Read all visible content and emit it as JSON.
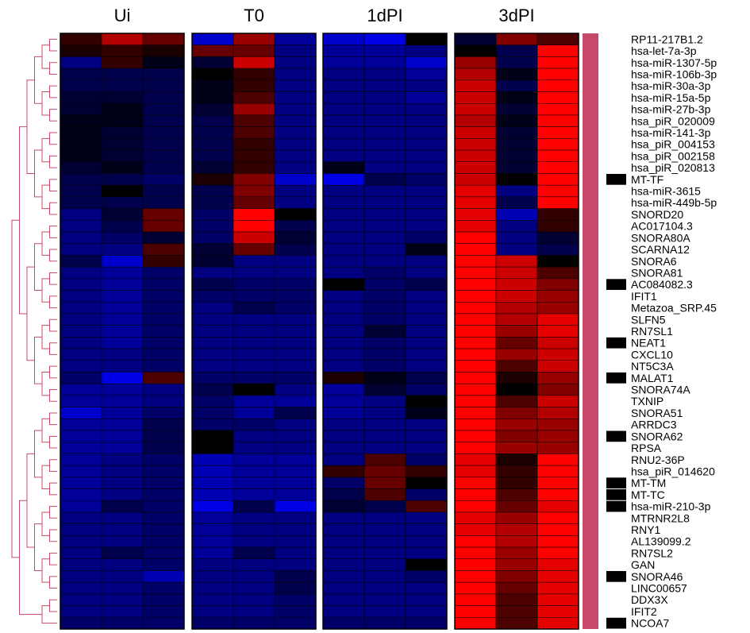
{
  "chart_data": {
    "type": "heatmap",
    "title": "",
    "xlabel": "",
    "ylabel": "",
    "groups": [
      "Ui",
      "T0",
      "1dPI",
      "3dPI"
    ],
    "replicates_per_group": 3,
    "row_labels": [
      "RP11-217B1.2",
      "hsa-let-7a-3p",
      "hsa-miR-1307-5p",
      "hsa-miR-106b-3p",
      "hsa-miR-30a-3p",
      "hsa-miR-15a-5p",
      "hsa-miR-27b-3p",
      "hsa_piR_020009",
      "hsa-miR-141-3p",
      "hsa_piR_004153",
      "hsa_piR_002158",
      "hsa_piR_020813",
      "MT-TF",
      "hsa-miR-3615",
      "hsa-miR-449b-5p",
      "SNORD20",
      "AC017104.3",
      "SNORA80A",
      "SCARNA12",
      "SNORA6",
      "SNORA81",
      "AC084082.3",
      "IFIT1",
      "Metazoa_SRP.45",
      "SLFN5",
      "RN7SL1",
      "NEAT1",
      "CXCL10",
      "NT5C3A",
      "MALAT1",
      "SNORA74A",
      "TXNIP",
      "SNORA51",
      "ARRDC3",
      "SNORA62",
      "RPSA",
      "RNU2-36P",
      "hsa_piR_014620",
      "MT-TM",
      "MT-TC",
      "hsa-miR-210-3p",
      "MTRNR2L8",
      "RNY1",
      "AL139099.2",
      "RN7SL2",
      "GAN",
      "SNORA46",
      "LINC00657",
      "DDX3X",
      "IFIT2",
      "NCOA7"
    ],
    "annotation_rows": [
      "MT-TF",
      "AC084082.3",
      "NEAT1",
      "MALAT1",
      "SNORA62",
      "MT-TM",
      "MT-TC",
      "hsa-miR-210-3p",
      "SNORA46",
      "NCOA7"
    ],
    "annotation_bar_color": "#c84a6a",
    "dendrogram_color": "#c84a6a",
    "color_scale": {
      "low": "#0000ff",
      "mid": "#000000",
      "high": "#ff0000",
      "range": [
        -1,
        1
      ]
    },
    "values": [
      [
        0.2,
        0.7,
        0.4,
        -0.8,
        0.6,
        -0.6,
        -0.8,
        -0.9,
        0.0,
        -0.2,
        0.5,
        0.3
      ],
      [
        0.1,
        0.2,
        0.1,
        0.4,
        0.4,
        -0.5,
        -0.6,
        -0.6,
        -0.5,
        0.0,
        -0.3,
        1
      ],
      [
        -0.5,
        0.2,
        -0.1,
        -0.2,
        0.8,
        -0.5,
        -0.6,
        -0.6,
        -0.8,
        0.6,
        -0.3,
        1
      ],
      [
        -0.3,
        -0.3,
        -0.3,
        0.0,
        0.2,
        -0.5,
        -0.5,
        -0.5,
        -0.6,
        0.7,
        -0.1,
        1
      ],
      [
        -0.3,
        -0.3,
        -0.3,
        -0.1,
        0.2,
        -0.5,
        -0.5,
        -0.5,
        -0.5,
        0.8,
        -0.3,
        1
      ],
      [
        -0.2,
        -0.2,
        -0.3,
        -0.1,
        0.3,
        -0.5,
        -0.5,
        -0.5,
        -0.6,
        0.8,
        -0.1,
        1
      ],
      [
        -0.2,
        -0.1,
        -0.3,
        -0.2,
        0.6,
        -0.5,
        -0.5,
        -0.5,
        -0.5,
        0.8,
        -0.2,
        1
      ],
      [
        -0.1,
        -0.1,
        -0.3,
        -0.3,
        0.3,
        -0.5,
        -0.5,
        -0.5,
        -0.5,
        0.7,
        -0.1,
        1
      ],
      [
        -0.1,
        -0.2,
        -0.3,
        -0.3,
        0.3,
        -0.5,
        -0.5,
        -0.5,
        -0.5,
        0.8,
        -0.2,
        1
      ],
      [
        -0.1,
        -0.2,
        -0.3,
        -0.3,
        0.2,
        -0.5,
        -0.5,
        -0.5,
        -0.5,
        0.8,
        -0.2,
        1
      ],
      [
        -0.1,
        -0.2,
        -0.3,
        -0.3,
        0.2,
        -0.5,
        -0.5,
        -0.5,
        -0.5,
        0.8,
        -0.2,
        1
      ],
      [
        -0.2,
        -0.1,
        -0.3,
        -0.2,
        0.2,
        -0.5,
        -0.1,
        -0.5,
        -0.5,
        0.8,
        -0.2,
        1
      ],
      [
        -0.3,
        -0.3,
        -0.4,
        0.1,
        0.5,
        -0.8,
        -0.9,
        -0.3,
        -0.4,
        0.8,
        0.0,
        1
      ],
      [
        -0.3,
        0.0,
        -0.3,
        -0.3,
        0.5,
        -0.5,
        -0.5,
        -0.5,
        -0.5,
        0.9,
        -0.5,
        1
      ],
      [
        -0.3,
        -0.3,
        -0.3,
        -0.3,
        0.4,
        -0.5,
        -0.5,
        -0.5,
        -0.5,
        0.9,
        -0.3,
        1
      ],
      [
        -0.5,
        -0.2,
        0.4,
        -0.4,
        1,
        0.0,
        -0.5,
        -0.5,
        -0.5,
        0.9,
        -0.7,
        0.2
      ],
      [
        -0.5,
        -0.3,
        0.4,
        -0.4,
        1,
        -0.3,
        -0.5,
        -0.5,
        -0.5,
        0.9,
        -0.5,
        0.2
      ],
      [
        -0.5,
        -0.4,
        -0.2,
        -0.4,
        0.8,
        -0.2,
        -0.5,
        -0.5,
        -0.4,
        1,
        -0.5,
        -0.2
      ],
      [
        -0.5,
        -0.5,
        0.3,
        -0.2,
        0.4,
        -0.3,
        -0.5,
        -0.5,
        -0.1,
        1,
        -0.5,
        -0.3
      ],
      [
        -0.3,
        -0.8,
        0.2,
        -0.2,
        -0.5,
        -0.5,
        -0.5,
        -0.5,
        -0.5,
        1,
        0.8,
        0.0
      ],
      [
        -0.5,
        -0.6,
        -0.4,
        -0.5,
        -0.5,
        -0.5,
        -0.5,
        -0.4,
        -0.5,
        1,
        0.8,
        0.3
      ],
      [
        -0.5,
        -0.6,
        -0.4,
        -0.3,
        -0.4,
        -0.4,
        0.0,
        -0.4,
        -0.3,
        1,
        0.8,
        0.5
      ],
      [
        -0.5,
        -0.6,
        -0.4,
        -0.4,
        -0.4,
        -0.4,
        -0.5,
        -0.4,
        -0.5,
        1,
        0.8,
        0.6
      ],
      [
        -0.5,
        -0.6,
        -0.4,
        -0.5,
        -0.3,
        -0.4,
        -0.5,
        -0.4,
        -0.5,
        1,
        0.7,
        0.6
      ],
      [
        -0.5,
        -0.6,
        -0.4,
        -0.5,
        -0.5,
        -0.5,
        -0.5,
        -0.4,
        -0.5,
        1,
        0.7,
        0.9
      ],
      [
        -0.5,
        -0.6,
        -0.4,
        -0.5,
        -0.5,
        -0.5,
        -0.5,
        -0.2,
        -0.5,
        1,
        0.6,
        0.9
      ],
      [
        -0.5,
        -0.6,
        -0.4,
        -0.5,
        -0.5,
        -0.5,
        -0.5,
        -0.4,
        -0.5,
        1,
        0.4,
        0.8
      ],
      [
        -0.5,
        -0.5,
        -0.4,
        -0.5,
        -0.5,
        -0.5,
        -0.5,
        -0.4,
        -0.5,
        1,
        0.6,
        0.8
      ],
      [
        -0.5,
        -0.5,
        -0.4,
        -0.5,
        -0.5,
        -0.5,
        -0.5,
        -0.4,
        -0.5,
        1,
        0.3,
        0.8
      ],
      [
        -0.4,
        -0.9,
        0.3,
        -0.4,
        -0.4,
        -0.4,
        0.1,
        -0.1,
        -0.3,
        1,
        0.1,
        0.6
      ],
      [
        -0.6,
        -0.6,
        -0.5,
        -0.3,
        0.0,
        -0.5,
        -0.6,
        -0.2,
        -0.4,
        1,
        0.0,
        0.5
      ],
      [
        -0.6,
        -0.6,
        -0.5,
        -0.4,
        -0.6,
        -0.6,
        -0.6,
        -0.5,
        0.0,
        1,
        0.3,
        0.8
      ],
      [
        -0.8,
        -0.6,
        -0.4,
        -0.4,
        -0.6,
        -0.3,
        -0.6,
        -0.5,
        -0.1,
        1,
        0.5,
        0.7
      ],
      [
        -0.6,
        -0.6,
        -0.3,
        -0.4,
        -0.4,
        -0.5,
        -0.5,
        -0.5,
        -0.5,
        1,
        0.6,
        0.6
      ],
      [
        -0.6,
        -0.6,
        -0.3,
        0.0,
        -0.5,
        -0.5,
        -0.5,
        -0.5,
        -0.5,
        1,
        0.5,
        0.6
      ],
      [
        -0.6,
        -0.6,
        -0.3,
        0.0,
        -0.5,
        -0.5,
        -0.5,
        -0.5,
        -0.5,
        1,
        0.6,
        0.6
      ],
      [
        -0.6,
        -0.5,
        -0.4,
        -0.7,
        -0.6,
        -0.6,
        -0.5,
        0.3,
        -0.4,
        0.9,
        0.1,
        1
      ],
      [
        -0.6,
        -0.5,
        -0.4,
        -0.7,
        -0.6,
        -0.6,
        0.2,
        0.4,
        0.2,
        0.9,
        0.2,
        1
      ],
      [
        -0.6,
        -0.5,
        -0.4,
        -0.7,
        -0.6,
        -0.6,
        -0.4,
        0.4,
        0.0,
        1,
        0.2,
        1
      ],
      [
        -0.6,
        -0.5,
        -0.4,
        -0.7,
        -0.6,
        -0.6,
        -0.3,
        0.3,
        -0.4,
        1,
        0.3,
        1
      ],
      [
        -0.6,
        -0.3,
        -0.4,
        -0.9,
        -0.3,
        -0.9,
        -0.2,
        -0.3,
        0.3,
        1,
        0.4,
        0.9
      ],
      [
        -0.5,
        -0.5,
        -0.4,
        -0.6,
        -0.5,
        -0.5,
        -0.5,
        -0.5,
        -0.5,
        0.9,
        0.6,
        1
      ],
      [
        -0.5,
        -0.5,
        -0.4,
        -0.6,
        -0.5,
        -0.5,
        -0.5,
        -0.5,
        -0.5,
        0.9,
        0.7,
        1
      ],
      [
        -0.5,
        -0.5,
        -0.4,
        -0.6,
        -0.5,
        -0.5,
        -0.5,
        -0.5,
        -0.5,
        1,
        0.7,
        1
      ],
      [
        -0.5,
        -0.3,
        -0.4,
        -0.6,
        -0.3,
        -0.5,
        -0.5,
        -0.5,
        -0.5,
        1,
        0.6,
        1
      ],
      [
        -0.5,
        -0.5,
        -0.4,
        -0.5,
        -0.5,
        -0.5,
        -0.5,
        -0.5,
        0.0,
        1,
        0.6,
        0.9
      ],
      [
        -0.5,
        -0.5,
        -0.7,
        -0.5,
        -0.5,
        -0.3,
        -0.5,
        -0.5,
        -0.4,
        1,
        0.5,
        0.9
      ],
      [
        -0.5,
        -0.5,
        -0.4,
        -0.5,
        -0.5,
        -0.3,
        -0.5,
        -0.5,
        -0.5,
        1,
        0.4,
        0.9
      ],
      [
        -0.5,
        -0.5,
        -0.4,
        -0.5,
        -0.5,
        -0.4,
        -0.5,
        -0.5,
        -0.5,
        1,
        0.3,
        0.9
      ],
      [
        -0.5,
        -0.5,
        -0.4,
        -0.5,
        -0.5,
        -0.4,
        -0.5,
        -0.5,
        -0.5,
        1,
        0.3,
        0.9
      ],
      [
        -0.4,
        -0.4,
        -0.4,
        -0.4,
        -0.4,
        -0.4,
        -0.4,
        -0.4,
        -0.4,
        1,
        0.3,
        0.9
      ]
    ]
  }
}
